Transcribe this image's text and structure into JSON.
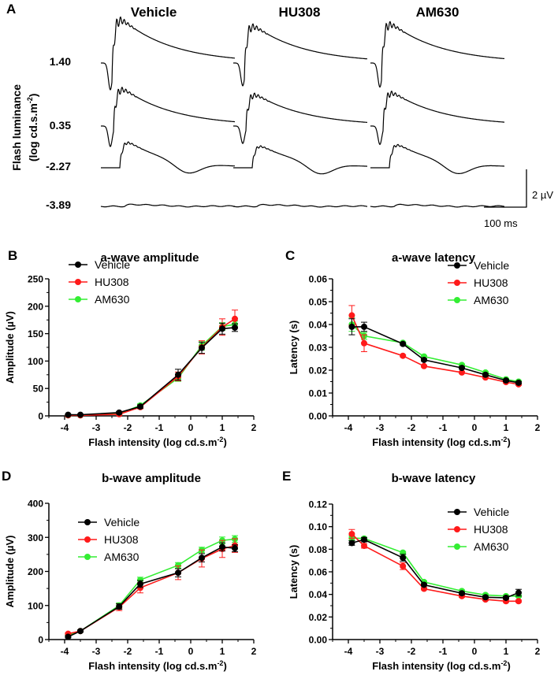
{
  "panel_a": {
    "label": "A",
    "columns": [
      "Vehicle",
      "HU308",
      "AM630"
    ],
    "rows": [
      "1.40",
      "0.35",
      "-2.27",
      "-3.89"
    ],
    "ylabel_line1": "Flash luminance",
    "ylabel_line2": "(log cd.s.m",
    "ylabel_sup": "-2",
    "ylabel_close": ")",
    "scale_voltage": "2 µV",
    "scale_time": "100 ms"
  },
  "colors": {
    "Vehicle": "#000000",
    "HU308": "#ff1a1a",
    "AM630": "#33ee33"
  },
  "chart_data": [
    {
      "panel": "B",
      "type": "line",
      "title": "a-wave amplitude",
      "xlabel": "Flash intensity (log cd.s.m",
      "xlabel_sup": "-2",
      "xlabel_close": ")",
      "ylabel": "Amplitude (µV)",
      "xlim": [
        -4.5,
        2
      ],
      "ylim": [
        0,
        250
      ],
      "xticks": [
        -4,
        -3,
        -2,
        -1,
        0,
        1,
        2
      ],
      "yticks": [
        0,
        50,
        100,
        150,
        200,
        250
      ],
      "legend": "top-left",
      "x": [
        -3.89,
        -3.5,
        -2.27,
        -1.6,
        -0.4,
        0.35,
        1.0,
        1.4
      ],
      "series": [
        {
          "name": "Vehicle",
          "values": [
            2,
            2,
            6,
            17,
            75,
            124,
            159,
            161
          ],
          "error": [
            1,
            1,
            2,
            3,
            10,
            10,
            10,
            7
          ]
        },
        {
          "name": "HU308",
          "values": [
            1,
            1,
            3,
            16,
            72,
            125,
            162,
            177
          ],
          "error": [
            1,
            1,
            2,
            3,
            8,
            12,
            15,
            16
          ]
        },
        {
          "name": "AM630",
          "values": [
            1,
            1,
            4,
            19,
            69,
            128,
            163,
            167
          ],
          "error": [
            1,
            1,
            2,
            3,
            6,
            8,
            7,
            6
          ]
        }
      ]
    },
    {
      "panel": "C",
      "type": "line",
      "title": "a-wave latency",
      "xlabel": "Flash intensity (log cd.s.m",
      "xlabel_sup": "-2",
      "xlabel_close": ")",
      "ylabel": "Latency (s)",
      "xlim": [
        -4.5,
        2
      ],
      "ylim": [
        0,
        0.06
      ],
      "xticks": [
        -4,
        -3,
        -2,
        -1,
        0,
        1,
        2
      ],
      "yticks": [
        "0.00",
        "0.01",
        "0.02",
        "0.03",
        "0.04",
        "0.05",
        "0.06"
      ],
      "legend": "top-right",
      "x": [
        -3.89,
        -3.5,
        -2.27,
        -1.6,
        -0.4,
        0.35,
        1.0,
        1.4
      ],
      "series": [
        {
          "name": "Vehicle",
          "values": [
            0.039,
            0.039,
            0.0315,
            0.0245,
            0.021,
            0.018,
            0.0155,
            0.0145
          ],
          "error": [
            0.0035,
            0.002,
            0.0005,
            0.0005,
            0.0005,
            0.0005,
            0.0005,
            0.0005
          ]
        },
        {
          "name": "HU308",
          "values": [
            0.044,
            0.0318,
            0.0263,
            0.0218,
            0.019,
            0.0168,
            0.0148,
            0.0138
          ],
          "error": [
            0.0043,
            0.0037,
            0.0004,
            0.0004,
            0.0004,
            0.0004,
            0.0004,
            0.0004
          ]
        },
        {
          "name": "AM630",
          "values": [
            0.04,
            0.035,
            0.032,
            0.026,
            0.0223,
            0.019,
            0.016,
            0.015
          ],
          "error": [
            0.003,
            0.0015,
            0.0004,
            0.0004,
            0.0004,
            0.0004,
            0.0004,
            0.0004
          ]
        }
      ]
    },
    {
      "panel": "D",
      "type": "line",
      "title": "b-wave amplitude",
      "xlabel": "Flash intensity (log cd.s.m",
      "xlabel_sup": "-2",
      "xlabel_close": ")",
      "ylabel": "Amplitude (µV)",
      "xlim": [
        -4.5,
        2
      ],
      "ylim": [
        0,
        400
      ],
      "xticks": [
        -4,
        -3,
        -2,
        -1,
        0,
        1,
        2
      ],
      "yticks": [
        0,
        100,
        200,
        300,
        400
      ],
      "legend": "middle-left",
      "x": [
        -3.89,
        -3.5,
        -2.27,
        -1.6,
        -0.4,
        0.35,
        1.0,
        1.4
      ],
      "series": [
        {
          "name": "Vehicle",
          "values": [
            8,
            25,
            97,
            163,
            196,
            240,
            272,
            268
          ],
          "error": [
            3,
            3,
            8,
            10,
            12,
            12,
            12,
            10
          ]
        },
        {
          "name": "HU308",
          "values": [
            17,
            25,
            95,
            152,
            196,
            238,
            266,
            276
          ],
          "error": [
            3,
            3,
            10,
            15,
            20,
            25,
            25,
            20
          ]
        },
        {
          "name": "AM630",
          "values": [
            13,
            25,
            100,
            175,
            218,
            263,
            291,
            295
          ],
          "error": [
            3,
            3,
            8,
            8,
            8,
            8,
            10,
            10
          ]
        }
      ]
    },
    {
      "panel": "E",
      "type": "line",
      "title": "b-wave latency",
      "xlabel": "Flash intensity (log cd.s.m",
      "xlabel_sup": "-2",
      "xlabel_close": ")",
      "ylabel": "Latency (s)",
      "xlim": [
        -4.5,
        2
      ],
      "ylim": [
        0,
        0.12
      ],
      "xticks": [
        -4,
        -3,
        -2,
        -1,
        0,
        1,
        2
      ],
      "yticks": [
        "0.00",
        "0.02",
        "0.04",
        "0.06",
        "0.08",
        "0.10",
        "0.12"
      ],
      "legend": "top-right",
      "x": [
        -3.89,
        -3.5,
        -2.27,
        -1.6,
        -0.4,
        0.35,
        1.0,
        1.4
      ],
      "series": [
        {
          "name": "Vehicle",
          "values": [
            0.0855,
            0.0885,
            0.0725,
            0.0485,
            0.041,
            0.0375,
            0.037,
            0.0415
          ],
          "error": [
            0.002,
            0.002,
            0.003,
            0.001,
            0.001,
            0.001,
            0.001,
            0.003
          ]
        },
        {
          "name": "HU308",
          "values": [
            0.0935,
            0.083,
            0.065,
            0.045,
            0.0385,
            0.0355,
            0.034,
            0.034
          ],
          "error": [
            0.004,
            0.002,
            0.003,
            0.001,
            0.001,
            0.001,
            0.001,
            0.001
          ]
        },
        {
          "name": "AM630",
          "values": [
            0.09,
            0.0895,
            0.077,
            0.051,
            0.043,
            0.0395,
            0.0385,
            0.0385
          ],
          "error": [
            0.002,
            0.001,
            0.001,
            0.001,
            0.001,
            0.001,
            0.001,
            0.001
          ]
        }
      ]
    }
  ]
}
